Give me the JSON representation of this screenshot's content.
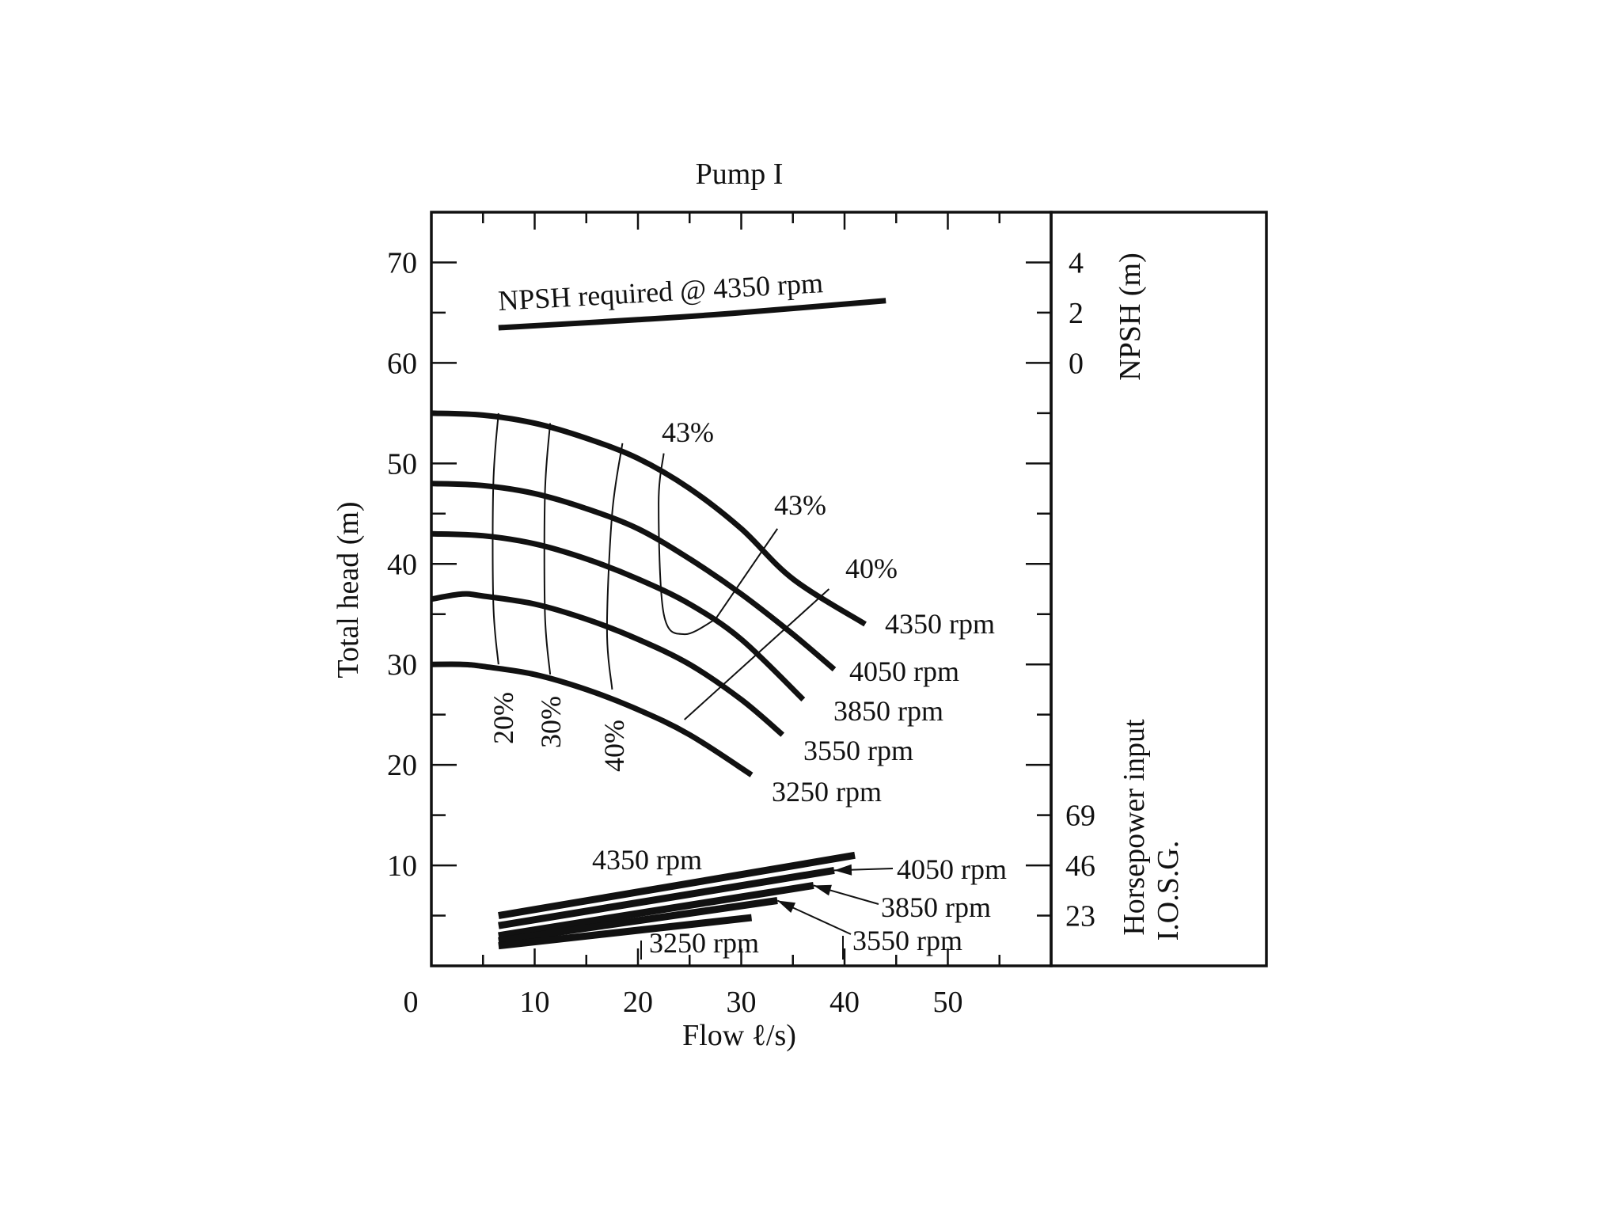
{
  "chart_data": {
    "type": "line",
    "title": "Pump I",
    "xlabel": "Flow ℓ/s)",
    "ylabel": "Total head (m)",
    "xlim": [
      0,
      60
    ],
    "ylim": [
      0,
      75
    ],
    "x_ticks": [
      0,
      10,
      20,
      30,
      40,
      50
    ],
    "y_ticks": [
      10,
      20,
      30,
      40,
      50,
      60,
      70
    ],
    "right_axes": {
      "npsh": {
        "label": "NPSH (m)",
        "ticks": [
          {
            "label": "4",
            "head_equiv": 70
          },
          {
            "label": "2",
            "head_equiv": 65
          },
          {
            "label": "0",
            "head_equiv": 60
          }
        ]
      },
      "horsepower": {
        "label_line1": "Horsepower input",
        "label_line2": "I.O.S.G.",
        "ticks": [
          {
            "label": "69",
            "head_equiv": 15
          },
          {
            "label": "46",
            "head_equiv": 10
          },
          {
            "label": "23",
            "head_equiv": 5
          }
        ]
      }
    },
    "head_curves": [
      {
        "name": "4350 rpm",
        "x": [
          0,
          5,
          10,
          15,
          20,
          25,
          30,
          35,
          42
        ],
        "y": [
          55,
          54.8,
          54,
          52.5,
          50.5,
          47.5,
          43.5,
          38.5,
          34
        ]
      },
      {
        "name": "4050 rpm",
        "x": [
          0,
          5,
          10,
          15,
          20,
          25,
          30,
          35,
          39
        ],
        "y": [
          48,
          47.8,
          47,
          45.5,
          43.5,
          40.5,
          37,
          33,
          29.5
        ]
      },
      {
        "name": "3850 rpm",
        "x": [
          0,
          5,
          10,
          15,
          20,
          25,
          30,
          36
        ],
        "y": [
          43,
          42.8,
          42,
          40.5,
          38.5,
          36,
          32.5,
          26.5
        ]
      },
      {
        "name": "3550 rpm",
        "x": [
          0,
          3,
          5,
          10,
          15,
          20,
          25,
          30,
          34
        ],
        "y": [
          36.5,
          37,
          36.8,
          36,
          34.5,
          32.5,
          30,
          26.5,
          23
        ]
      },
      {
        "name": "3250 rpm",
        "x": [
          0,
          3,
          5,
          10,
          15,
          20,
          25,
          31
        ],
        "y": [
          30,
          30,
          29.8,
          29,
          27.5,
          25.5,
          23,
          19
        ]
      }
    ],
    "efficiency_curves": [
      {
        "name": "20%",
        "x": [
          6.5,
          6,
          6,
          6.5
        ],
        "y": [
          55,
          48,
          36,
          30
        ]
      },
      {
        "name": "30%",
        "x": [
          11.5,
          11,
          11,
          11.5
        ],
        "y": [
          54,
          47,
          35,
          29
        ]
      },
      {
        "name": "40%",
        "x": [
          18.5,
          17.5,
          17,
          17.5
        ],
        "y": [
          52,
          45,
          33.5,
          27.5
        ]
      },
      {
        "name": "43%",
        "x": [
          22.5,
          22,
          22.5,
          24.5,
          27.5
        ],
        "y": [
          51,
          46,
          35,
          33,
          34.5
        ]
      },
      {
        "name": "43%",
        "x": [
          33.5,
          27.5
        ],
        "y": [
          43.5,
          34.5
        ]
      },
      {
        "name": "40%",
        "x": [
          38.5,
          24.5
        ],
        "y": [
          37.5,
          24.5
        ]
      }
    ],
    "efficiency_labels": [
      "20%",
      "30%",
      "40%",
      "43%",
      "43%",
      "40%"
    ],
    "npsh_required": {
      "name": "NPSH required @ 4350 rpm",
      "x": [
        6.5,
        20,
        30,
        44
      ],
      "y": [
        63.5,
        64.3,
        65,
        66.2
      ]
    },
    "horsepower_lines": [
      {
        "name": "4350 rpm",
        "x": [
          6.5,
          41
        ],
        "y": [
          5,
          11
        ]
      },
      {
        "name": "4050 rpm",
        "x": [
          6.5,
          39
        ],
        "y": [
          4,
          9.5
        ]
      },
      {
        "name": "3850 rpm",
        "x": [
          6.5,
          37
        ],
        "y": [
          3,
          8
        ]
      },
      {
        "name": "3550 rpm",
        "x": [
          6.5,
          33.5
        ],
        "y": [
          2.5,
          6.5
        ]
      },
      {
        "name": "3250 rpm",
        "x": [
          6.5,
          31
        ],
        "y": [
          2,
          4.8
        ]
      }
    ],
    "grid": false
  }
}
